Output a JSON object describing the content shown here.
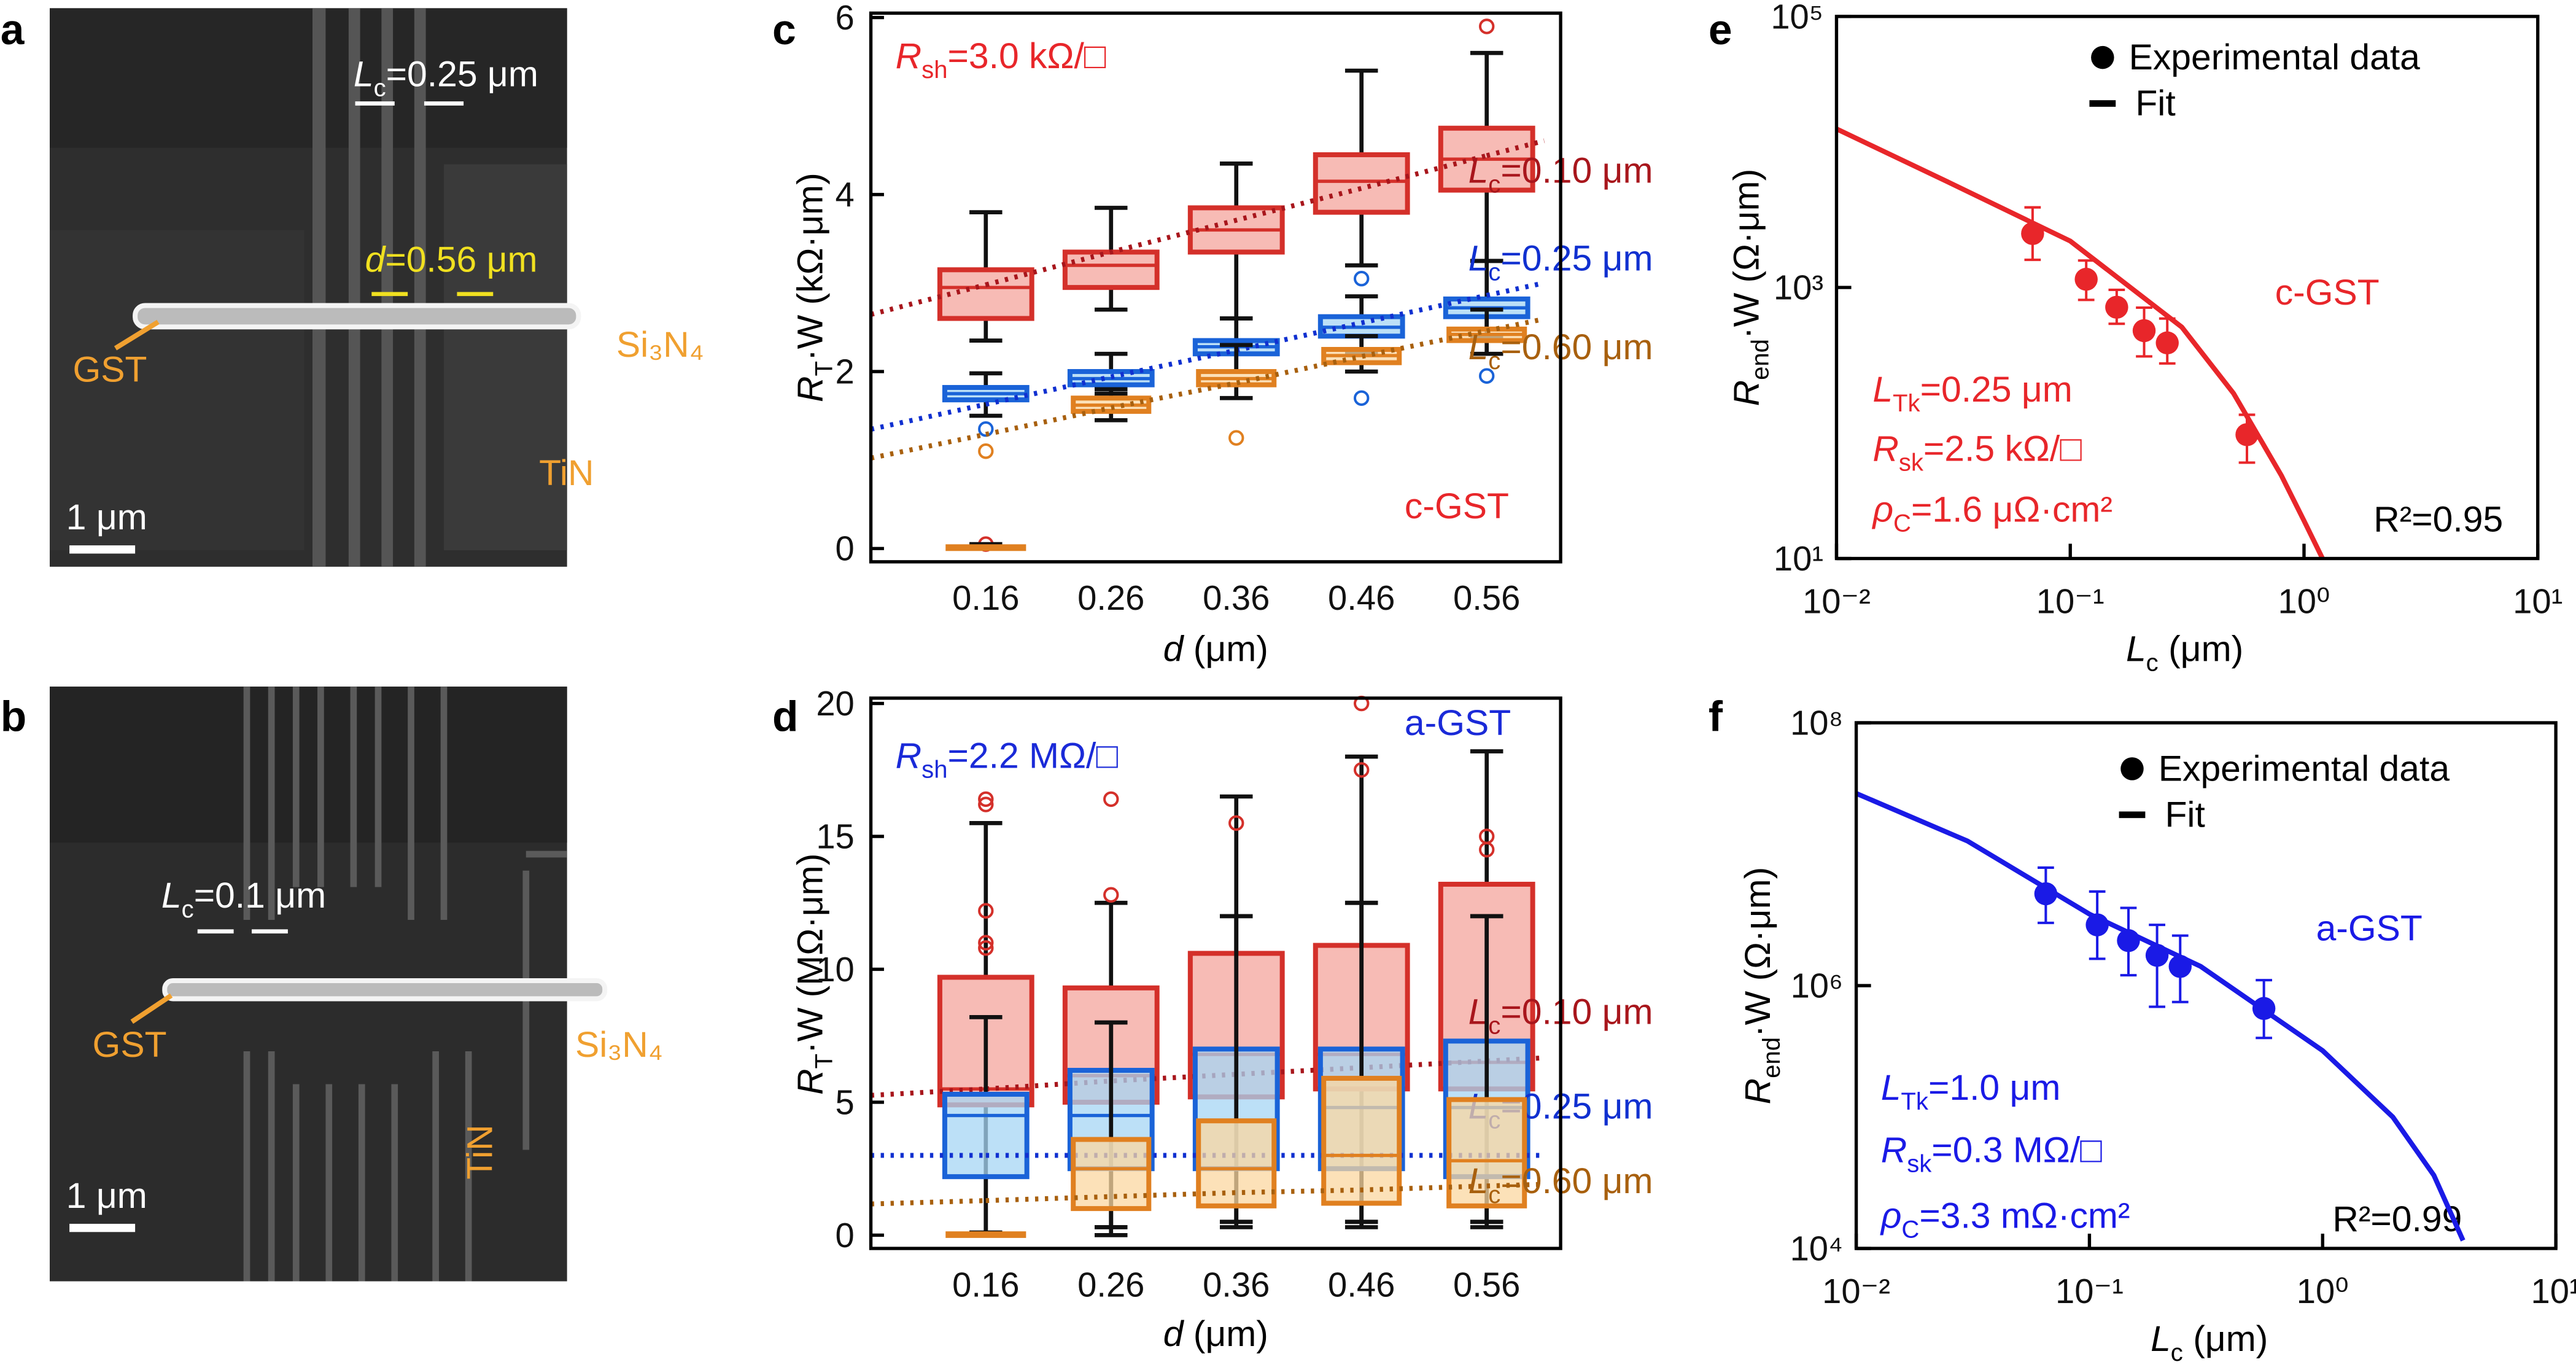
{
  "images": [
    {
      "panel": "a",
      "contact_label": {
        "main": "L",
        "sub": "c",
        "rest": "=0.25 μm"
      },
      "spacing_label": {
        "main": "d",
        "rest": "=0.56 μm"
      },
      "gst": "GST",
      "substrate": "Si₃N₄",
      "electrode": "TiN",
      "scale": "1 μm"
    },
    {
      "panel": "b",
      "contact_label": {
        "main": "L",
        "sub": "c",
        "rest": "=0.1 μm"
      },
      "gst": "GST",
      "substrate": "Si₃N₄",
      "electrode": "TiN",
      "scale": "1 μm"
    }
  ],
  "chart_data": [
    {
      "type": "box",
      "panel": "c",
      "xlabel": {
        "main": "d",
        "rest": " (μm)"
      },
      "ylabel": {
        "main": "R",
        "sub": "T",
        "rest": "·W (kΩ·μm)"
      },
      "ylim": [
        -0.15,
        6.05
      ],
      "yticks": [
        0,
        2,
        4,
        6
      ],
      "categories": [
        "0.16",
        "0.26",
        "0.36",
        "0.46",
        "0.56"
      ],
      "annotations": [
        {
          "text": {
            "main": "R",
            "sub": "sh",
            "rest": "=3.0 kΩ/□"
          },
          "color": "#e8262a"
        },
        {
          "text": {
            "rest": "c-GST"
          },
          "color": "#e8262a"
        }
      ],
      "series": [
        {
          "name": {
            "main": "L",
            "sub": "c",
            "rest": "=0.10 μm"
          },
          "color": "#d4302a",
          "fill": "#f4a49c",
          "fit_color": "#a8161c",
          "boxes": [
            {
              "whislo": 2.35,
              "q1": 2.6,
              "med": 2.95,
              "q3": 3.15,
              "whishi": 3.8,
              "fliers": [
                0.05
              ]
            },
            {
              "whislo": 2.7,
              "q1": 2.95,
              "med": 3.2,
              "q3": 3.35,
              "whishi": 3.85,
              "fliers": []
            },
            {
              "whislo": 2.6,
              "q1": 3.35,
              "med": 3.6,
              "q3": 3.85,
              "whishi": 4.35,
              "fliers": []
            },
            {
              "whislo": 3.2,
              "q1": 3.8,
              "med": 4.15,
              "q3": 4.45,
              "whishi": 5.4,
              "fliers": []
            },
            {
              "whislo": 3.25,
              "q1": 4.05,
              "med": 4.4,
              "q3": 4.75,
              "whishi": 5.6,
              "fliers": [
                5.9
              ]
            }
          ],
          "fit": [
            2.98,
            3.35,
            3.71,
            4.07,
            4.44
          ]
        },
        {
          "name": {
            "main": "L",
            "sub": "c",
            "rest": "=0.25 μm"
          },
          "color": "#1a63d8",
          "fill": "#a6d6f4",
          "fit_color": "#1030d0",
          "boxes": [
            {
              "whislo": 1.5,
              "q1": 1.68,
              "med": 1.75,
              "q3": 1.82,
              "whishi": 1.98,
              "fliers": [
                1.35
              ]
            },
            {
              "whislo": 1.75,
              "q1": 1.85,
              "med": 1.92,
              "q3": 2.0,
              "whishi": 2.2,
              "fliers": []
            },
            {
              "whislo": 2.0,
              "q1": 2.2,
              "med": 2.28,
              "q3": 2.35,
              "whishi": 2.6,
              "fliers": []
            },
            {
              "whislo": 2.2,
              "q1": 2.4,
              "med": 2.5,
              "q3": 2.62,
              "whishi": 2.85,
              "fliers": [
                3.05,
                1.7
              ]
            },
            {
              "whislo": 2.4,
              "q1": 2.62,
              "med": 2.72,
              "q3": 2.82,
              "whishi": 3.25,
              "fliers": [
                1.95
              ]
            }
          ],
          "fit": [
            1.63,
            1.94,
            2.24,
            2.55,
            2.86
          ]
        },
        {
          "name": {
            "main": "L",
            "sub": "c",
            "rest": "=0.60 μm"
          },
          "color": "#e08020",
          "fill": "#fbd7a0",
          "fit_color": "#a8600e",
          "boxes": [
            {
              "whislo": 0,
              "q1": 0,
              "med": 0,
              "q3": 0.02,
              "whishi": 0.05,
              "fliers": [
                1.1
              ]
            },
            {
              "whislo": 1.45,
              "q1": 1.55,
              "med": 1.62,
              "q3": 1.7,
              "whishi": 1.8,
              "fliers": []
            },
            {
              "whislo": 1.7,
              "q1": 1.85,
              "med": 1.92,
              "q3": 2.0,
              "whishi": 2.3,
              "fliers": [
                1.25
              ]
            },
            {
              "whislo": 2.0,
              "q1": 2.1,
              "med": 2.18,
              "q3": 2.25,
              "whishi": 2.4,
              "fliers": []
            },
            {
              "whislo": 2.2,
              "q1": 2.35,
              "med": 2.42,
              "q3": 2.48,
              "whishi": 2.7,
              "fliers": []
            }
          ],
          "fit": [
            1.29,
            1.59,
            1.87,
            2.17,
            2.46
          ]
        }
      ]
    },
    {
      "type": "box",
      "panel": "d",
      "xlabel": {
        "main": "d",
        "rest": " (μm)"
      },
      "ylabel": {
        "main": "R",
        "sub": "T",
        "rest": "·W (MΩ·μm)"
      },
      "ylim": [
        -0.5,
        20.2
      ],
      "yticks": [
        0,
        5,
        10,
        15,
        20
      ],
      "categories": [
        "0.16",
        "0.26",
        "0.36",
        "0.46",
        "0.56"
      ],
      "annotations": [
        {
          "text": {
            "main": "R",
            "sub": "sh",
            "rest": "=2.2 MΩ/□"
          },
          "color": "#1a2ad8"
        },
        {
          "text": {
            "rest": "a-GST"
          },
          "color": "#1a2ad8"
        }
      ],
      "series": [
        {
          "name": {
            "main": "L",
            "sub": "c",
            "rest": "=0.10 μm"
          },
          "color": "#d4302a",
          "fill": "#f4a49c",
          "fit_color": "#a8161c",
          "boxes": [
            {
              "whislo": 0,
              "q1": 4.9,
              "med": 5.5,
              "q3": 9.7,
              "whishi": 15.5,
              "fliers": [
                16.2,
                16.4,
                12.2,
                11,
                10.8
              ]
            },
            {
              "whislo": 0,
              "q1": 5,
              "med": 6,
              "q3": 9.3,
              "whishi": 12.5,
              "fliers": [
                12.8,
                16.4
              ]
            },
            {
              "whislo": 0.5,
              "q1": 5.2,
              "med": 6.8,
              "q3": 10.6,
              "whishi": 16.5,
              "fliers": [
                15.5
              ]
            },
            {
              "whislo": 0.5,
              "q1": 5.5,
              "med": 6.8,
              "q3": 10.9,
              "whishi": 18,
              "fliers": [
                17.5,
                20
              ]
            },
            {
              "whislo": 0.5,
              "q1": 5.5,
              "med": 6.5,
              "q3": 13.2,
              "whishi": 18.2,
              "fliers": [
                14.5,
                15
              ]
            }
          ],
          "fit": [
            5.5,
            5.8,
            6.05,
            6.3,
            6.55
          ]
        },
        {
          "name": {
            "main": "L",
            "sub": "c",
            "rest": "=0.25 μm"
          },
          "color": "#1a63d8",
          "fill": "#a6d6f4",
          "fit_color": "#1030d0",
          "boxes": [
            {
              "whislo": 0,
              "q1": 2.2,
              "med": 4.5,
              "q3": 5.3,
              "whishi": 8.2,
              "fliers": []
            },
            {
              "whislo": 0.3,
              "q1": 2.5,
              "med": 4.5,
              "q3": 6.2,
              "whishi": 8,
              "fliers": []
            },
            {
              "whislo": 0.5,
              "q1": 2.5,
              "med": 4.3,
              "q3": 7.0,
              "whishi": 12,
              "fliers": []
            },
            {
              "whislo": 0.5,
              "q1": 2.5,
              "med": 4.8,
              "q3": 7.0,
              "whishi": 12.5,
              "fliers": []
            },
            {
              "whislo": 0.5,
              "q1": 2.2,
              "med": 4.8,
              "q3": 7.3,
              "whishi": 12,
              "fliers": []
            }
          ],
          "fit": [
            3.0,
            3.0,
            3.0,
            3.0,
            3.0
          ]
        },
        {
          "name": {
            "main": "L",
            "sub": "c",
            "rest": "=0.60 μm"
          },
          "color": "#e08020",
          "fill": "#fbd7a0",
          "fit_color": "#a8600e",
          "boxes": [
            {
              "whislo": 0,
              "q1": 0,
              "med": 0,
              "q3": 0.05,
              "whishi": 0.1,
              "fliers": []
            },
            {
              "whislo": 0.3,
              "q1": 1.0,
              "med": 2.5,
              "q3": 3.6,
              "whishi": 8,
              "fliers": []
            },
            {
              "whislo": 0.3,
              "q1": 1.1,
              "med": 2.5,
              "q3": 4.3,
              "whishi": 12,
              "fliers": []
            },
            {
              "whislo": 0.3,
              "q1": 1.2,
              "med": 3.0,
              "q3": 5.9,
              "whishi": 12.5,
              "fliers": []
            },
            {
              "whislo": 0.3,
              "q1": 1.1,
              "med": 2.8,
              "q3": 5.1,
              "whishi": 12,
              "fliers": []
            }
          ],
          "fit": [
            1.3,
            1.45,
            1.6,
            1.7,
            1.85
          ]
        }
      ]
    },
    {
      "type": "scatter",
      "panel": "e",
      "xlog": true,
      "ylog": true,
      "xlabel": {
        "main": "L",
        "sub": "c",
        "rest": " (μm)"
      },
      "ylabel": {
        "main": "R",
        "sub": "end",
        "rest": "·W (Ω·μm)"
      },
      "xlim": [
        0.01,
        10
      ],
      "ylim": [
        10,
        100000
      ],
      "xticks": [
        {
          "value": 0.01,
          "label": "10⁻²"
        },
        {
          "value": 0.1,
          "label": "10⁻¹"
        },
        {
          "value": 1,
          "label": "10⁰"
        },
        {
          "value": 10,
          "label": "10¹"
        }
      ],
      "yticks": [
        {
          "value": 10,
          "label": "10¹"
        },
        {
          "value": 1000,
          "label": "10³"
        },
        {
          "value": 100000,
          "label": "10⁵"
        }
      ],
      "series": [
        {
          "name": "Experimental data",
          "color": "#e8262a",
          "x": [
            0.069,
            0.117,
            0.158,
            0.207,
            0.26,
            0.57
          ],
          "values": [
            2500,
            1150,
            715,
            480,
            390,
            82
          ],
          "y_low": [
            1600,
            810,
            540,
            310,
            275,
            51
          ],
          "y_high": [
            3900,
            1580,
            960,
            710,
            590,
            115
          ]
        }
      ],
      "fit": {
        "name": "Fit",
        "color": "#e8262a",
        "x": [
          0.01,
          0.03,
          0.1,
          0.3,
          0.5,
          0.8,
          1.0,
          1.2
        ],
        "values": [
          14800,
          6000,
          2200,
          510,
          165,
          41,
          19,
          10
        ]
      },
      "annotations": [
        {
          "text": {
            "rest": "c-GST"
          },
          "color": "#e8262a"
        },
        {
          "text": {
            "main": "L",
            "sub": "Tk",
            "rest": "=0.25 μm"
          },
          "color": "#e8262a"
        },
        {
          "text": {
            "main": "R",
            "sub": "sk",
            "rest": "=2.5 kΩ/□"
          },
          "color": "#e8262a"
        },
        {
          "text": {
            "main": "ρ",
            "sub": "C",
            "rest": "=1.6 μΩ·cm²"
          },
          "color": "#e8262a"
        },
        {
          "text": {
            "rest": "R²=0.95"
          },
          "color": "#000000"
        }
      ]
    },
    {
      "type": "scatter",
      "panel": "f",
      "xlog": true,
      "ylog": true,
      "xlabel": {
        "main": "L",
        "sub": "c",
        "rest": " (μm)"
      },
      "ylabel": {
        "main": "R",
        "sub": "end",
        "rest": "·W (Ω·μm)"
      },
      "xlim": [
        0.01,
        10
      ],
      "ylim": [
        10000,
        100000000
      ],
      "xticks": [
        {
          "value": 0.01,
          "label": "10⁻²"
        },
        {
          "value": 0.1,
          "label": "10⁻¹"
        },
        {
          "value": 1,
          "label": "10⁰"
        },
        {
          "value": 10,
          "label": "10¹"
        }
      ],
      "yticks": [
        {
          "value": 10000,
          "label": "10⁴"
        },
        {
          "value": 1000000,
          "label": "10⁶"
        },
        {
          "value": 100000000,
          "label": "10⁸"
        }
      ],
      "series": [
        {
          "name": "Experimental data",
          "color": "#1a1ae6",
          "x": [
            0.065,
            0.108,
            0.147,
            0.195,
            0.245,
            0.56
          ],
          "values": [
            5000000,
            2900000,
            2200000,
            1700000,
            1400000,
            670000
          ],
          "y_low": [
            3000000,
            1600000,
            1200000,
            690000,
            750000,
            400000
          ],
          "y_high": [
            7900000,
            5200000,
            3900000,
            2900000,
            2400000,
            1100000
          ]
        }
      ],
      "fit": {
        "name": "Fit",
        "color": "#1a1ae6",
        "x": [
          0.01,
          0.03,
          0.1,
          0.3,
          1,
          2,
          3,
          4
        ],
        "values": [
          29000000,
          12600000,
          3500000,
          1400000,
          320000,
          100000,
          36000,
          11500
        ]
      },
      "annotations": [
        {
          "text": {
            "rest": "a-GST"
          },
          "color": "#1a1ae6"
        },
        {
          "text": {
            "main": "L",
            "sub": "Tk",
            "rest": "=1.0 μm"
          },
          "color": "#1a1ae6"
        },
        {
          "text": {
            "main": "R",
            "sub": "sk",
            "rest": "=0.3 MΩ/□"
          },
          "color": "#1a1ae6"
        },
        {
          "text": {
            "main": "ρ",
            "sub": "C",
            "rest": "=3.3 mΩ·cm²"
          },
          "color": "#1a1ae6"
        },
        {
          "text": {
            "rest": "R²=0.99"
          },
          "color": "#000000"
        }
      ]
    }
  ]
}
